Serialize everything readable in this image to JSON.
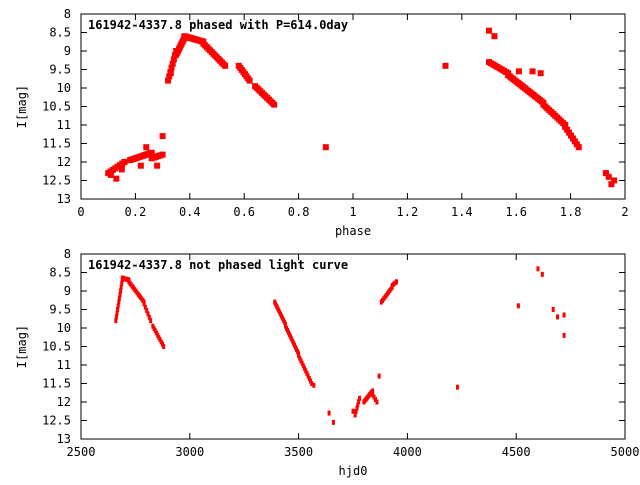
{
  "chart_data": [
    {
      "type": "scatter",
      "title": "161942-4337.8 phased with P=614.0day",
      "xlabel": "phase",
      "ylabel": "I[mag]",
      "xlim": [
        0,
        2
      ],
      "ylim": [
        13,
        8
      ],
      "y_inverted": true,
      "grid": false,
      "marker_color": "#ff0000",
      "x_ticks": [
        "0",
        "0.2",
        "0.4",
        "0.6",
        "0.8",
        "1",
        "1.2",
        "1.4",
        "1.6",
        "1.8",
        "2"
      ],
      "y_ticks": [
        "8",
        "8.5",
        "9",
        "9.5",
        "10",
        "10.5",
        "11",
        "11.5",
        "12",
        "12.5",
        "13"
      ],
      "segments": [
        [
          0.1,
          12.3,
          0.16,
          12.0,
          8
        ],
        [
          0.18,
          11.95,
          0.26,
          11.75,
          14
        ],
        [
          0.26,
          11.9,
          0.3,
          11.8,
          6
        ],
        [
          0.3,
          11.3,
          0.3,
          11.3,
          1
        ],
        [
          0.32,
          9.8,
          0.35,
          9.0,
          8
        ],
        [
          0.35,
          9.1,
          0.38,
          8.65,
          10
        ],
        [
          0.38,
          8.6,
          0.45,
          8.75,
          16
        ],
        [
          0.45,
          8.8,
          0.53,
          9.4,
          14
        ],
        [
          0.58,
          9.4,
          0.62,
          9.8,
          8
        ],
        [
          0.64,
          9.95,
          0.71,
          10.45,
          12
        ],
        [
          1.5,
          9.3,
          1.57,
          9.6,
          10
        ],
        [
          1.57,
          9.65,
          1.7,
          10.4,
          22
        ],
        [
          1.7,
          10.45,
          1.78,
          11.0,
          12
        ],
        [
          1.78,
          11.05,
          1.83,
          11.6,
          8
        ]
      ],
      "points": [
        [
          0.11,
          12.35
        ],
        [
          0.13,
          12.45
        ],
        [
          0.15,
          12.2
        ],
        [
          0.22,
          12.1
        ],
        [
          0.24,
          11.6
        ],
        [
          0.28,
          12.1
        ],
        [
          0.33,
          9.6
        ],
        [
          0.9,
          11.6
        ],
        [
          1.34,
          9.4
        ],
        [
          1.5,
          8.45
        ],
        [
          1.52,
          8.6
        ],
        [
          1.61,
          9.55
        ],
        [
          1.66,
          9.55
        ],
        [
          1.69,
          9.6
        ],
        [
          1.93,
          12.3
        ],
        [
          1.94,
          12.4
        ],
        [
          1.95,
          12.6
        ],
        [
          1.96,
          12.5
        ]
      ]
    },
    {
      "type": "scatter",
      "title": "161942-4337.8 not phased light curve",
      "xlabel": "hjd0",
      "ylabel": "I[mag]",
      "xlim": [
        2500,
        5000
      ],
      "ylim": [
        13,
        8
      ],
      "y_inverted": true,
      "grid": false,
      "marker_color": "#ff0000",
      "x_ticks": [
        "2500",
        "3000",
        "3500",
        "4000",
        "4500",
        "5000"
      ],
      "y_ticks": [
        "8",
        "8.5",
        "9",
        "9.5",
        "10",
        "10.5",
        "11",
        "11.5",
        "12",
        "12.5",
        "13"
      ],
      "segments": [
        [
          2660,
          9.8,
          2690,
          8.7,
          12
        ],
        [
          2690,
          8.65,
          2720,
          8.7,
          6
        ],
        [
          2720,
          8.75,
          2790,
          9.3,
          14
        ],
        [
          2790,
          9.35,
          2820,
          9.8,
          6
        ],
        [
          2830,
          9.95,
          2880,
          10.5,
          10
        ],
        [
          3390,
          9.3,
          3440,
          9.9,
          12
        ],
        [
          3440,
          9.95,
          3500,
          10.7,
          14
        ],
        [
          3500,
          10.75,
          3560,
          11.5,
          12
        ],
        [
          3760,
          12.35,
          3780,
          11.9,
          6
        ],
        [
          3800,
          12.0,
          3840,
          11.7,
          10
        ],
        [
          3840,
          11.8,
          3860,
          12.0,
          4
        ],
        [
          3880,
          9.3,
          3930,
          8.9,
          10
        ],
        [
          3930,
          8.85,
          3950,
          8.75,
          4
        ]
      ],
      "points": [
        [
          3570,
          11.55
        ],
        [
          3640,
          12.3
        ],
        [
          3660,
          12.55
        ],
        [
          3750,
          12.25
        ],
        [
          3870,
          11.3
        ],
        [
          4230,
          11.6
        ],
        [
          4510,
          9.4
        ],
        [
          4600,
          8.4
        ],
        [
          4620,
          8.55
        ],
        [
          4670,
          9.5
        ],
        [
          4690,
          9.7
        ],
        [
          4720,
          9.65
        ],
        [
          4720,
          10.2
        ]
      ]
    }
  ]
}
